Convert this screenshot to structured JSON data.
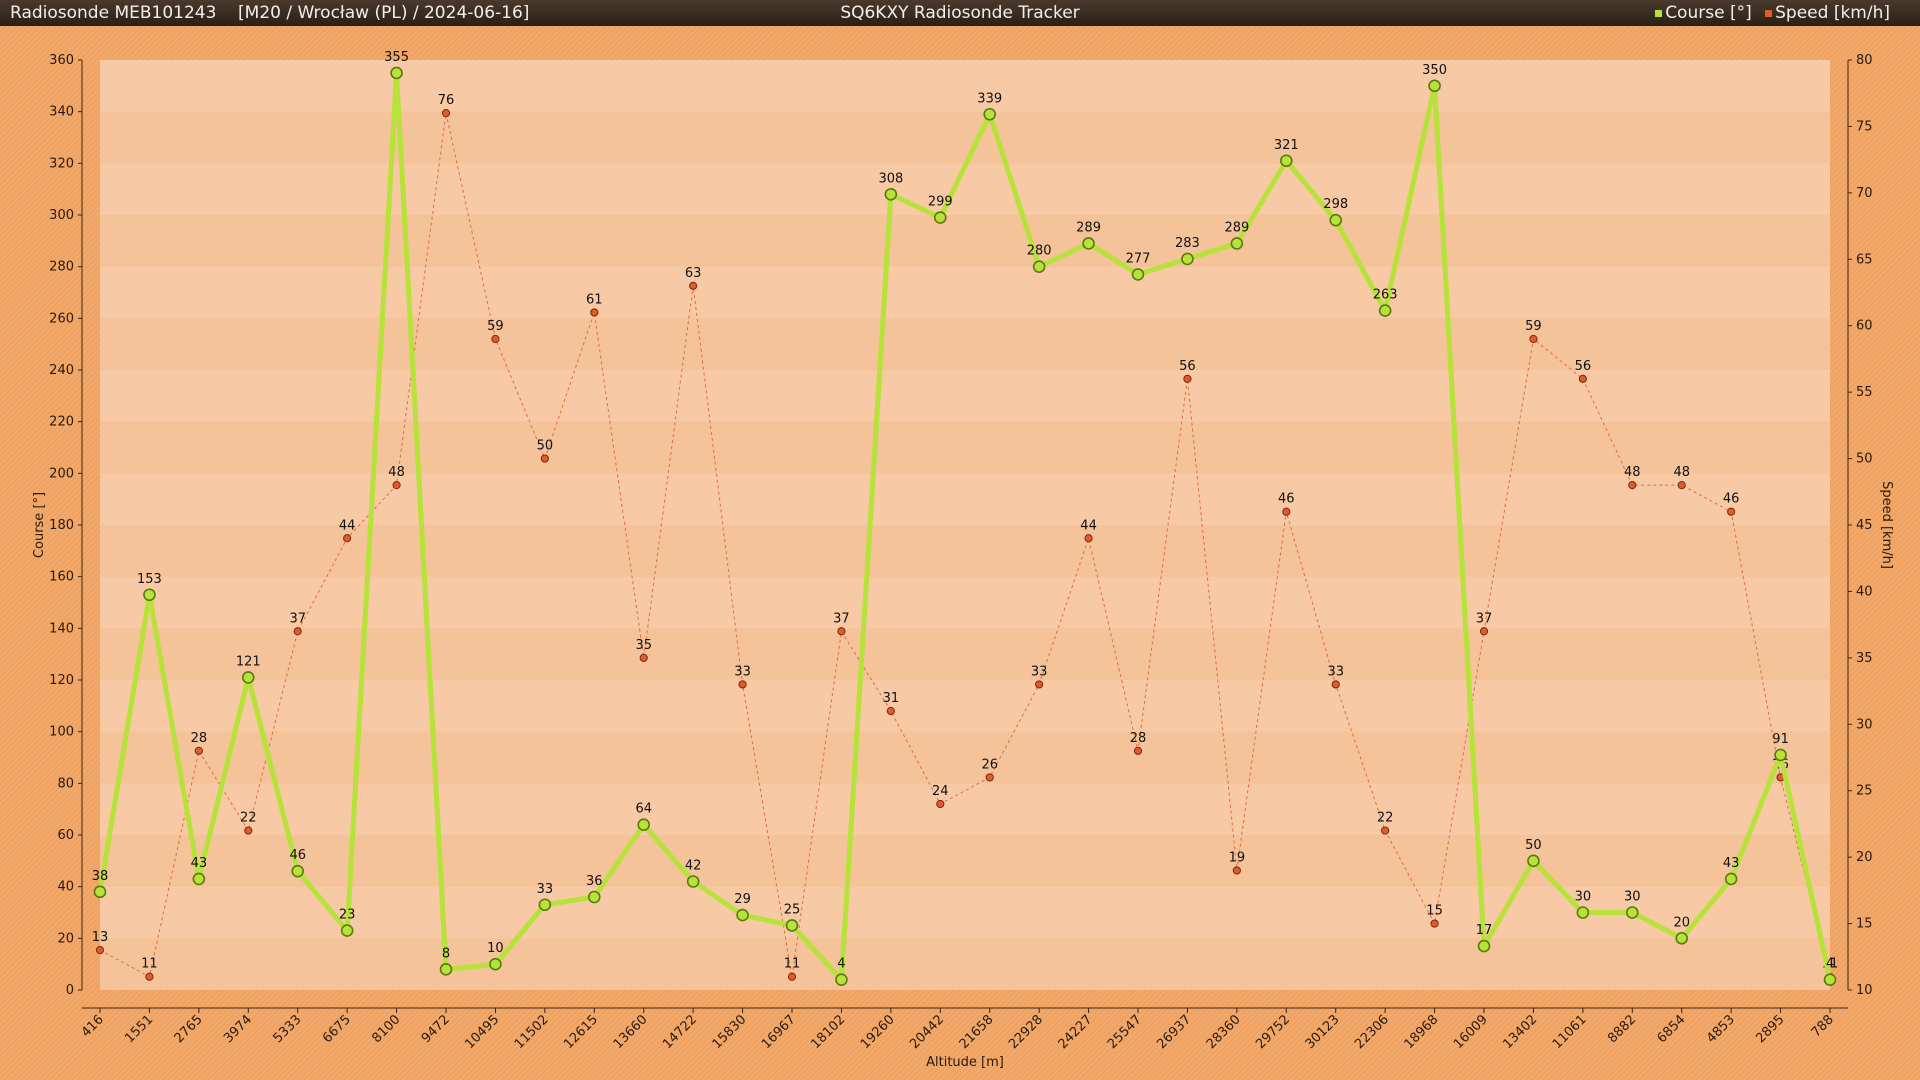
{
  "header": {
    "left_title": "Radiosonde MEB101243    [M20 / Wrocław (PL) / 2024-06-16]",
    "center_title": "SQ6KXY Radiosonde Tracker",
    "legend": [
      {
        "label": "Course [°]",
        "color": "#b7e23a"
      },
      {
        "label": "Speed [km/h]",
        "color": "#e05a2a"
      }
    ]
  },
  "chart_data": {
    "type": "line",
    "xlabel": "Altitude [m]",
    "ylabel_left": "Course [°]",
    "ylabel_right": "Speed [km/h]",
    "ylim_left": [
      0,
      360
    ],
    "ylim_right": [
      10,
      80
    ],
    "yticks_left": [
      0,
      20,
      40,
      60,
      80,
      100,
      120,
      140,
      160,
      180,
      200,
      220,
      240,
      260,
      280,
      300,
      320,
      340,
      360
    ],
    "yticks_right": [
      10,
      15,
      20,
      25,
      30,
      35,
      40,
      45,
      50,
      55,
      60,
      65,
      70,
      75,
      80
    ],
    "categories": [
      "416",
      "1551",
      "2765",
      "3974",
      "5333",
      "6675",
      "8100",
      "9472",
      "10495",
      "11502",
      "12615",
      "13660",
      "14722",
      "15830",
      "16967",
      "18102",
      "19260",
      "20442",
      "21658",
      "22928",
      "24227",
      "25547",
      "26937",
      "28360",
      "29752",
      "30123",
      "22306",
      "18968",
      "16009",
      "13402",
      "11061",
      "8882",
      "6854",
      "4853",
      "2895",
      "788"
    ],
    "series": [
      {
        "name": "Course [°]",
        "axis": "left",
        "color": "#b7e23a",
        "values": [
          38,
          153,
          43,
          121,
          46,
          23,
          355,
          8,
          10,
          33,
          36,
          64,
          42,
          29,
          25,
          4,
          308,
          299,
          339,
          280,
          289,
          277,
          283,
          289,
          321,
          298,
          263,
          350,
          17,
          50,
          30,
          30,
          20,
          43,
          91,
          4
        ]
      },
      {
        "name": "Speed [km/h]",
        "axis": "right",
        "color": "#e05a2a",
        "values": [
          13,
          11,
          28,
          22,
          37,
          44,
          48,
          76,
          59,
          50,
          61,
          35,
          63,
          33,
          11,
          37,
          31,
          24,
          26,
          33,
          44,
          28,
          56,
          19,
          46,
          33,
          22,
          15,
          37,
          59,
          56,
          48,
          48,
          46,
          26,
          11
        ]
      }
    ],
    "grid": true,
    "legend_position": "top-right"
  }
}
